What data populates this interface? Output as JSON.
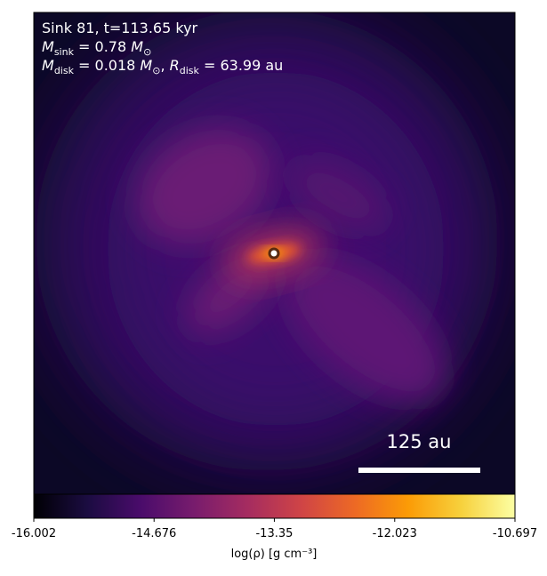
{
  "chart_data": {
    "type": "density-map",
    "annotation_lines": [
      [
        {
          "t": "Sink 81, t=113.65 kyr"
        }
      ],
      [
        {
          "t": "M",
          "s": "italic"
        },
        {
          "t": "sink",
          "s": "sub"
        },
        {
          "t": " = 0.78 "
        },
        {
          "t": "M",
          "s": "italic"
        },
        {
          "t": "⊙",
          "s": "sub"
        }
      ],
      [
        {
          "t": "M",
          "s": "italic"
        },
        {
          "t": "disk",
          "s": "sub"
        },
        {
          "t": " = 0.018 "
        },
        {
          "t": "M",
          "s": "italic"
        },
        {
          "t": "⊙",
          "s": "sub"
        },
        {
          "t": ", "
        },
        {
          "t": "R",
          "s": "italic"
        },
        {
          "t": "disk",
          "s": "sub"
        },
        {
          "t": " = 63.99 au"
        }
      ]
    ],
    "scale_bar_label": "125 au",
    "colorbar": {
      "label": "log(ρ) [g cm⁻³]",
      "clim": [
        -16.002,
        -10.697
      ],
      "ticks": [
        -16.002,
        -14.676,
        -13.35,
        -12.023,
        -10.697
      ],
      "colormap": [
        "#000004",
        "#1b0c41",
        "#4a0c6b",
        "#781c6d",
        "#a52c60",
        "#cf4446",
        "#ed6925",
        "#fb9b06",
        "#f7d13d",
        "#fcffa4"
      ]
    }
  }
}
